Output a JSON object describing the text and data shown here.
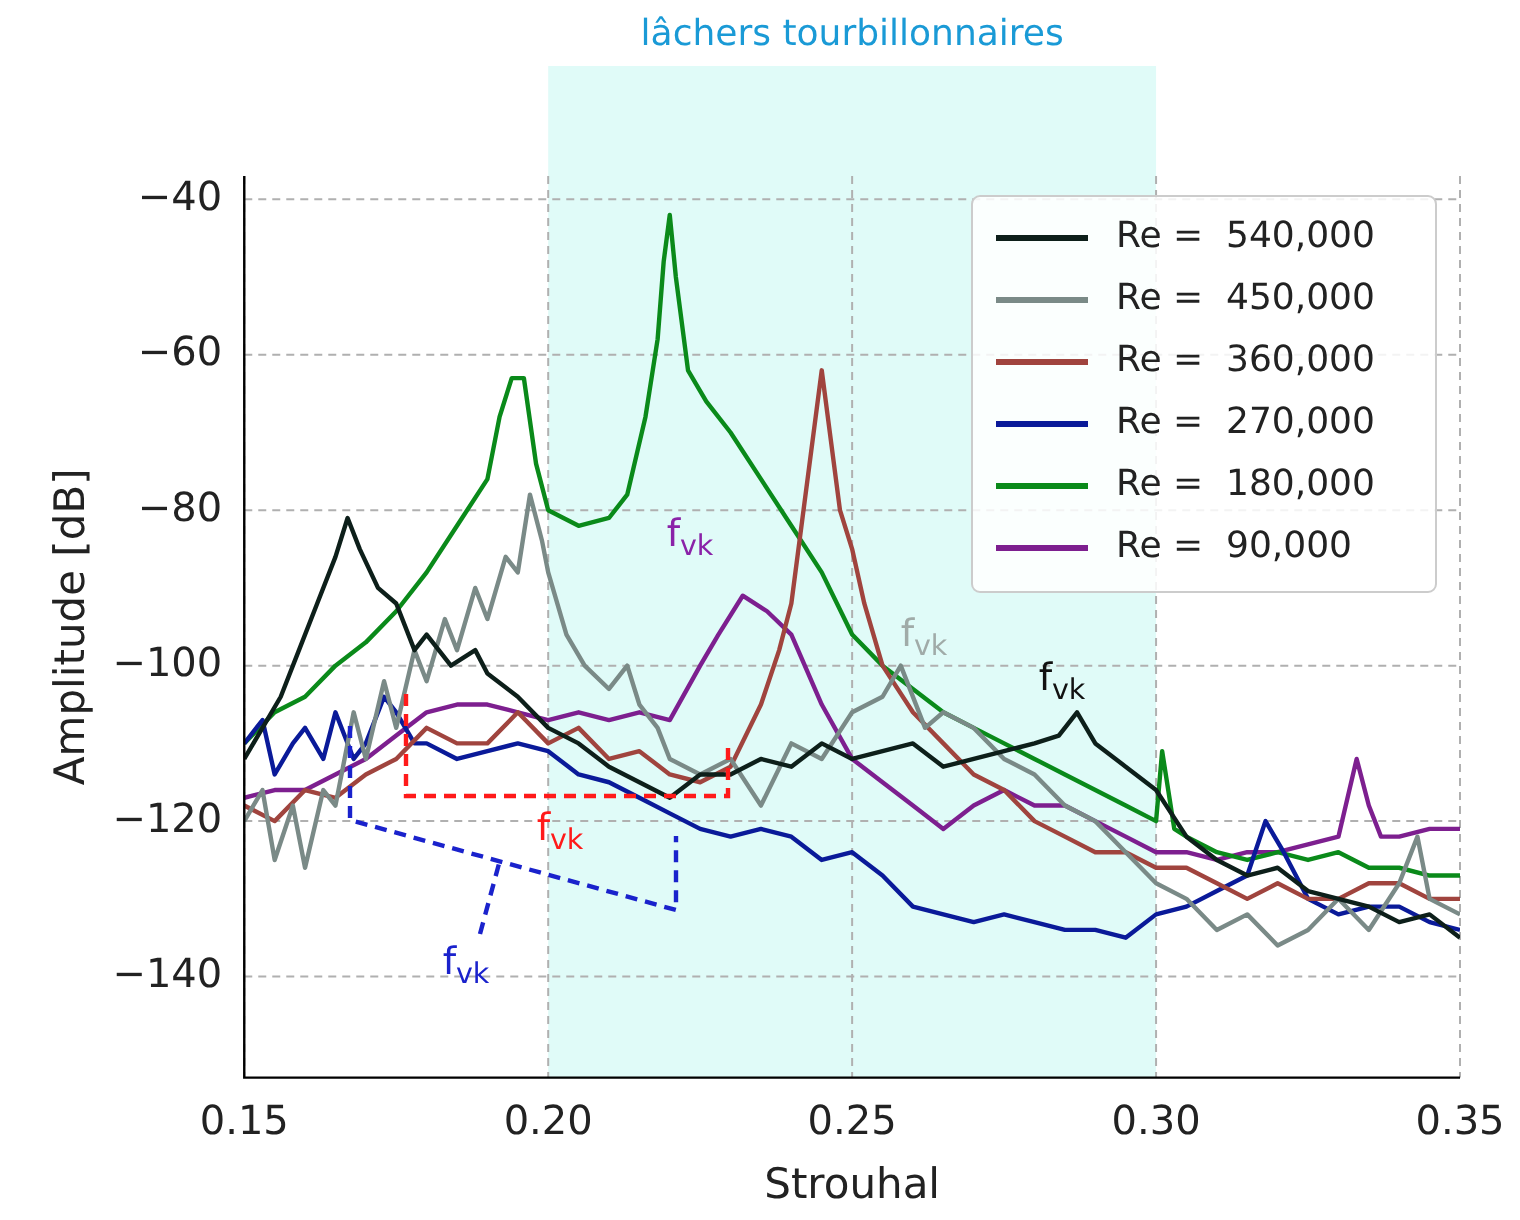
{
  "chart_data": {
    "type": "line",
    "xlabel": "Strouhal",
    "ylabel": "Amplitude [dB]",
    "xlim": [
      0.15,
      0.35
    ],
    "xticks": [
      {
        "value": 0.15,
        "label": "0.15"
      },
      {
        "value": 0.2,
        "label": "0.20"
      },
      {
        "value": 0.25,
        "label": "0.25"
      },
      {
        "value": 0.3,
        "label": "0.30"
      },
      {
        "value": 0.35,
        "label": "0.35"
      }
    ],
    "ylim": [
      -153,
      -37
    ],
    "yticks": [
      {
        "value": -140,
        "label": "−140"
      },
      {
        "value": -120,
        "label": "−120"
      },
      {
        "value": -100,
        "label": "−100"
      },
      {
        "value": -80,
        "label": "−80"
      },
      {
        "value": -60,
        "label": "−60"
      },
      {
        "value": -40,
        "label": "−40"
      }
    ],
    "grid": true,
    "legend": "top right",
    "marker": "none",
    "line_style": "solid",
    "bands": [
      {
        "axis": "x",
        "from": 0.2,
        "to": 0.3,
        "label": "lâchers tourbillonnaires",
        "color": "#e0fbf8"
      }
    ],
    "annotations": [
      "f$_{vk}$",
      "f$_{vk}$",
      "f$_{vk}$",
      "f$_{vk}$",
      "f$_{vk}$"
    ],
    "series": [
      {
        "name": "Re =  540,000",
        "color": "#0d1f1a",
        "x": [
          0.15,
          0.153,
          0.156,
          0.159,
          0.162,
          0.165,
          0.167,
          0.169,
          0.172,
          0.175,
          0.178,
          0.18,
          0.184,
          0.188,
          0.19,
          0.195,
          0.2,
          0.205,
          0.21,
          0.215,
          0.22,
          0.225,
          0.23,
          0.235,
          0.24,
          0.245,
          0.25,
          0.255,
          0.26,
          0.265,
          0.27,
          0.275,
          0.28,
          0.284,
          0.287,
          0.29,
          0.295,
          0.3,
          0.305,
          0.31,
          0.315,
          0.32,
          0.325,
          0.33,
          0.335,
          0.34,
          0.345,
          0.35
        ],
        "values": [
          -112,
          -108,
          -104,
          -98,
          -92,
          -86,
          -81,
          -85,
          -90,
          -92,
          -98,
          -96,
          -100,
          -98,
          -101,
          -104,
          -108,
          -110,
          -113,
          -115,
          -117,
          -114,
          -114,
          -112,
          -113,
          -110,
          -112,
          -111,
          -110,
          -113,
          -112,
          -111,
          -110,
          -109,
          -106,
          -110,
          -113,
          -116,
          -122,
          -125,
          -127,
          -126,
          -129,
          -130,
          -131,
          -133,
          -132,
          -135
        ]
      },
      {
        "name": "Re =  450,000",
        "color": "#7a8a87",
        "x": [
          0.15,
          0.153,
          0.155,
          0.158,
          0.16,
          0.163,
          0.165,
          0.168,
          0.17,
          0.173,
          0.175,
          0.178,
          0.18,
          0.183,
          0.185,
          0.188,
          0.19,
          0.193,
          0.195,
          0.197,
          0.199,
          0.2,
          0.203,
          0.206,
          0.21,
          0.213,
          0.215,
          0.218,
          0.22,
          0.225,
          0.23,
          0.235,
          0.24,
          0.245,
          0.25,
          0.255,
          0.258,
          0.262,
          0.265,
          0.27,
          0.275,
          0.28,
          0.285,
          0.29,
          0.295,
          0.3,
          0.305,
          0.31,
          0.315,
          0.32,
          0.325,
          0.33,
          0.335,
          0.34,
          0.343,
          0.345,
          0.35
        ],
        "values": [
          -120,
          -116,
          -125,
          -118,
          -126,
          -116,
          -118,
          -106,
          -112,
          -102,
          -108,
          -98,
          -102,
          -94,
          -98,
          -90,
          -94,
          -86,
          -88,
          -78,
          -84,
          -88,
          -96,
          -100,
          -103,
          -100,
          -105,
          -108,
          -112,
          -114,
          -112,
          -118,
          -110,
          -112,
          -106,
          -104,
          -100,
          -108,
          -106,
          -108,
          -112,
          -114,
          -118,
          -120,
          -124,
          -128,
          -130,
          -134,
          -132,
          -136,
          -134,
          -130,
          -134,
          -128,
          -122,
          -130,
          -132
        ]
      },
      {
        "name": "Re =  360,000",
        "color": "#a0443e",
        "x": [
          0.15,
          0.155,
          0.16,
          0.165,
          0.17,
          0.175,
          0.18,
          0.185,
          0.19,
          0.195,
          0.2,
          0.205,
          0.21,
          0.215,
          0.22,
          0.225,
          0.23,
          0.235,
          0.238,
          0.24,
          0.242,
          0.244,
          0.245,
          0.246,
          0.248,
          0.25,
          0.252,
          0.255,
          0.26,
          0.265,
          0.27,
          0.275,
          0.28,
          0.285,
          0.29,
          0.295,
          0.3,
          0.305,
          0.31,
          0.315,
          0.32,
          0.325,
          0.33,
          0.335,
          0.34,
          0.345,
          0.35
        ],
        "values": [
          -118,
          -120,
          -116,
          -117,
          -114,
          -112,
          -108,
          -110,
          -110,
          -106,
          -110,
          -108,
          -112,
          -111,
          -114,
          -115,
          -113,
          -105,
          -98,
          -92,
          -80,
          -68,
          -62,
          -68,
          -80,
          -85,
          -92,
          -100,
          -106,
          -110,
          -114,
          -116,
          -120,
          -122,
          -124,
          -124,
          -126,
          -126,
          -128,
          -130,
          -128,
          -130,
          -130,
          -128,
          -128,
          -130,
          -130
        ]
      },
      {
        "name": "Re =  270,000",
        "color": "#0a1a99",
        "x": [
          0.15,
          0.153,
          0.155,
          0.158,
          0.16,
          0.163,
          0.165,
          0.168,
          0.17,
          0.173,
          0.175,
          0.178,
          0.18,
          0.185,
          0.19,
          0.195,
          0.2,
          0.205,
          0.21,
          0.215,
          0.22,
          0.225,
          0.23,
          0.235,
          0.24,
          0.245,
          0.25,
          0.255,
          0.26,
          0.265,
          0.27,
          0.275,
          0.28,
          0.285,
          0.29,
          0.295,
          0.3,
          0.305,
          0.31,
          0.315,
          0.318,
          0.321,
          0.325,
          0.33,
          0.335,
          0.34,
          0.345,
          0.35
        ],
        "values": [
          -110,
          -107,
          -114,
          -110,
          -108,
          -112,
          -106,
          -112,
          -110,
          -104,
          -106,
          -110,
          -110,
          -112,
          -111,
          -110,
          -111,
          -114,
          -115,
          -117,
          -119,
          -121,
          -122,
          -121,
          -122,
          -125,
          -124,
          -127,
          -131,
          -132,
          -133,
          -132,
          -133,
          -134,
          -134,
          -135,
          -132,
          -131,
          -129,
          -127,
          -120,
          -124,
          -130,
          -132,
          -131,
          -131,
          -133,
          -134
        ]
      },
      {
        "name": "Re =  180,000",
        "color": "#0a8a1a",
        "x": [
          0.15,
          0.155,
          0.16,
          0.165,
          0.17,
          0.175,
          0.18,
          0.185,
          0.19,
          0.192,
          0.194,
          0.196,
          0.198,
          0.2,
          0.205,
          0.21,
          0.213,
          0.216,
          0.218,
          0.219,
          0.22,
          0.221,
          0.223,
          0.226,
          0.23,
          0.235,
          0.24,
          0.245,
          0.25,
          0.255,
          0.26,
          0.265,
          0.27,
          0.275,
          0.28,
          0.285,
          0.29,
          0.295,
          0.3,
          0.301,
          0.303,
          0.305,
          0.31,
          0.315,
          0.32,
          0.325,
          0.33,
          0.335,
          0.34,
          0.345,
          0.35
        ],
        "values": [
          -110,
          -106,
          -104,
          -100,
          -97,
          -93,
          -88,
          -82,
          -76,
          -68,
          -63,
          -63,
          -74,
          -80,
          -82,
          -81,
          -78,
          -68,
          -58,
          -48,
          -42,
          -50,
          -62,
          -66,
          -70,
          -76,
          -82,
          -88,
          -96,
          -100,
          -103,
          -106,
          -108,
          -110,
          -112,
          -114,
          -116,
          -118,
          -120,
          -111,
          -121,
          -122,
          -124,
          -125,
          -124,
          -125,
          -124,
          -126,
          -126,
          -127,
          -127
        ]
      },
      {
        "name": "Re =  90,000",
        "color": "#7d1f8f",
        "x": [
          0.15,
          0.155,
          0.16,
          0.165,
          0.17,
          0.175,
          0.18,
          0.185,
          0.19,
          0.195,
          0.2,
          0.205,
          0.21,
          0.215,
          0.22,
          0.225,
          0.228,
          0.232,
          0.236,
          0.24,
          0.245,
          0.25,
          0.255,
          0.26,
          0.265,
          0.27,
          0.275,
          0.28,
          0.285,
          0.29,
          0.295,
          0.3,
          0.305,
          0.31,
          0.315,
          0.32,
          0.325,
          0.33,
          0.333,
          0.335,
          0.337,
          0.34,
          0.345,
          0.35
        ],
        "values": [
          -117,
          -116,
          -116,
          -114,
          -112,
          -109,
          -106,
          -105,
          -105,
          -106,
          -107,
          -106,
          -107,
          -106,
          -107,
          -100,
          -96,
          -91,
          -93,
          -96,
          -105,
          -112,
          -115,
          -118,
          -121,
          -118,
          -116,
          -118,
          -118,
          -120,
          -122,
          -124,
          -124,
          -125,
          -124,
          -124,
          -123,
          -122,
          -112,
          -118,
          -122,
          -122,
          -121,
          -121
        ]
      }
    ]
  }
}
